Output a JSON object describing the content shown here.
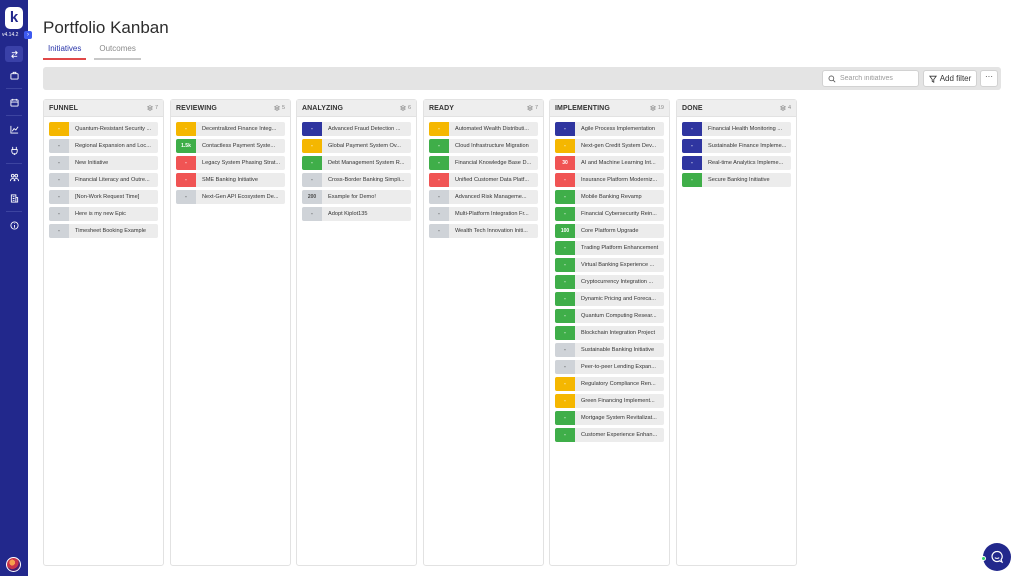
{
  "app": {
    "logo_letter": "k",
    "version": "v4.14.2",
    "collapse_icon": "chevron-right-icon",
    "collapse_glyph": "›"
  },
  "sidebar": {
    "items": [
      {
        "name": "sidebar-item-portfolio",
        "icon": "swap-icon",
        "active": true
      },
      {
        "name": "sidebar-item-work",
        "icon": "briefcase-icon",
        "active": false
      },
      {
        "name": "sidebar-item-calendar",
        "icon": "calendar-icon",
        "active": false
      },
      {
        "name": "sidebar-item-reports",
        "icon": "chart-icon",
        "active": false
      },
      {
        "name": "sidebar-item-integrations",
        "icon": "plug-icon",
        "active": false
      },
      {
        "name": "sidebar-item-teams",
        "icon": "team-icon",
        "active": false
      },
      {
        "name": "sidebar-item-organization",
        "icon": "building-icon",
        "active": false
      },
      {
        "name": "sidebar-item-info",
        "icon": "info-icon",
        "active": false
      }
    ]
  },
  "header": {
    "title": "Portfolio Kanban",
    "tabs": [
      {
        "label": "Initiatives",
        "active": true
      },
      {
        "label": "Outcomes",
        "active": false
      }
    ]
  },
  "toolbar": {
    "search_placeholder": "Search initiatives",
    "search_value": "",
    "filter_label": "Add filter",
    "more_label": "···"
  },
  "colors": {
    "sidebar": "#22288c",
    "yellow": "#f5b700",
    "green": "#3fae49",
    "red": "#f05454",
    "navy": "#2f35a0",
    "gray": "#cfd3d8"
  },
  "columns": [
    {
      "title": "FUNNEL",
      "count": "7",
      "cards": [
        {
          "badge": "-",
          "color": "yellow",
          "title": "Quantum-Resistant Security ..."
        },
        {
          "badge": "-",
          "color": "gray",
          "title": "Regional Expansion and Loc..."
        },
        {
          "badge": "-",
          "color": "gray",
          "title": "New Initiative"
        },
        {
          "badge": "-",
          "color": "gray",
          "title": "Financial Literacy and Outre..."
        },
        {
          "badge": "-",
          "color": "gray",
          "title": "[Non-Work Request Time]"
        },
        {
          "badge": "-",
          "color": "gray",
          "title": "Here is my new Epic"
        },
        {
          "badge": "-",
          "color": "gray",
          "title": "Timesheet Booking Example"
        }
      ]
    },
    {
      "title": "REVIEWING",
      "count": "5",
      "cards": [
        {
          "badge": "-",
          "color": "yellow",
          "title": "Decentralized Finance Integ..."
        },
        {
          "badge": "1.5k",
          "color": "green",
          "title": "Contactless Payment Syste..."
        },
        {
          "badge": "-",
          "color": "red",
          "title": "Legacy System Phasing Strat..."
        },
        {
          "badge": "-",
          "color": "red",
          "title": "SME Banking Initiative"
        },
        {
          "badge": "-",
          "color": "gray",
          "title": "Next-Gen API Ecosystem De..."
        }
      ]
    },
    {
      "title": "ANALYZING",
      "count": "6",
      "cards": [
        {
          "badge": "-",
          "color": "navy",
          "title": "Advanced Fraud Detection ..."
        },
        {
          "badge": "-",
          "color": "yellow",
          "title": "Global Payment System Ov..."
        },
        {
          "badge": "-",
          "color": "green",
          "title": "Debt Management System R..."
        },
        {
          "badge": "-",
          "color": "gray",
          "title": "Cross-Border Banking Simpli..."
        },
        {
          "badge": "200",
          "color": "gray",
          "title": "Example for Demo!"
        },
        {
          "badge": "-",
          "color": "gray",
          "title": "Adopt Kiplot135"
        }
      ]
    },
    {
      "title": "READY",
      "count": "7",
      "cards": [
        {
          "badge": "-",
          "color": "yellow",
          "title": "Automated Wealth Distributi..."
        },
        {
          "badge": "-",
          "color": "green",
          "title": "Cloud Infrastructure Migration"
        },
        {
          "badge": "-",
          "color": "green",
          "title": "Financial Knowledge Base D..."
        },
        {
          "badge": "-",
          "color": "red",
          "title": "Unified Customer Data Platf..."
        },
        {
          "badge": "-",
          "color": "gray",
          "title": "Advanced Risk Manageme..."
        },
        {
          "badge": "-",
          "color": "gray",
          "title": "Multi-Platform Integration Fr..."
        },
        {
          "badge": "-",
          "color": "gray",
          "title": "Wealth Tech Innovation Initi..."
        }
      ]
    },
    {
      "title": "IMPLEMENTING",
      "count": "19",
      "cards": [
        {
          "badge": "-",
          "color": "navy",
          "title": "Agile Process Implementation"
        },
        {
          "badge": "-",
          "color": "yellow",
          "title": "Next-gen Credit System Dev..."
        },
        {
          "badge": "30",
          "color": "red",
          "title": "AI and Machine Learning Int..."
        },
        {
          "badge": "-",
          "color": "red",
          "title": "Insurance Platform Moderniz..."
        },
        {
          "badge": "-",
          "color": "green",
          "title": "Mobile Banking Revamp"
        },
        {
          "badge": "-",
          "color": "green",
          "title": "Financial Cybersecurity Rein..."
        },
        {
          "badge": "100",
          "color": "green",
          "title": "Core Platform Upgrade"
        },
        {
          "badge": "-",
          "color": "green",
          "title": "Trading Platform Enhancement"
        },
        {
          "badge": "-",
          "color": "green",
          "title": "Virtual Banking Experience ..."
        },
        {
          "badge": "-",
          "color": "green",
          "title": "Cryptocurrency Integration ..."
        },
        {
          "badge": "-",
          "color": "green",
          "title": "Dynamic Pricing and Foreca..."
        },
        {
          "badge": "-",
          "color": "green",
          "title": "Quantum Computing Resear..."
        },
        {
          "badge": "-",
          "color": "green",
          "title": "Blockchain Integration Project"
        },
        {
          "badge": "-",
          "color": "gray",
          "title": "Sustainable Banking Initiative"
        },
        {
          "badge": "-",
          "color": "gray",
          "title": "Peer-to-peer Lending Expan..."
        },
        {
          "badge": "-",
          "color": "yellow",
          "title": "Regulatory Compliance Ren..."
        },
        {
          "badge": "-",
          "color": "yellow",
          "title": "Green Financing Implement..."
        },
        {
          "badge": "-",
          "color": "green",
          "title": "Mortgage System Revitalizat..."
        },
        {
          "badge": "-",
          "color": "green",
          "title": "Customer Experience Enhan..."
        }
      ]
    },
    {
      "title": "DONE",
      "count": "4",
      "cards": [
        {
          "badge": "-",
          "color": "navy",
          "title": "Financial Health Monitoring ..."
        },
        {
          "badge": "-",
          "color": "navy",
          "title": "Sustainable Finance Impleme..."
        },
        {
          "badge": "-",
          "color": "navy",
          "title": "Real-time Analytics Impleme..."
        },
        {
          "badge": "-",
          "color": "green",
          "title": "Secure Banking Initiative"
        }
      ]
    }
  ],
  "chat": {
    "icon": "chat-bubble-icon"
  }
}
